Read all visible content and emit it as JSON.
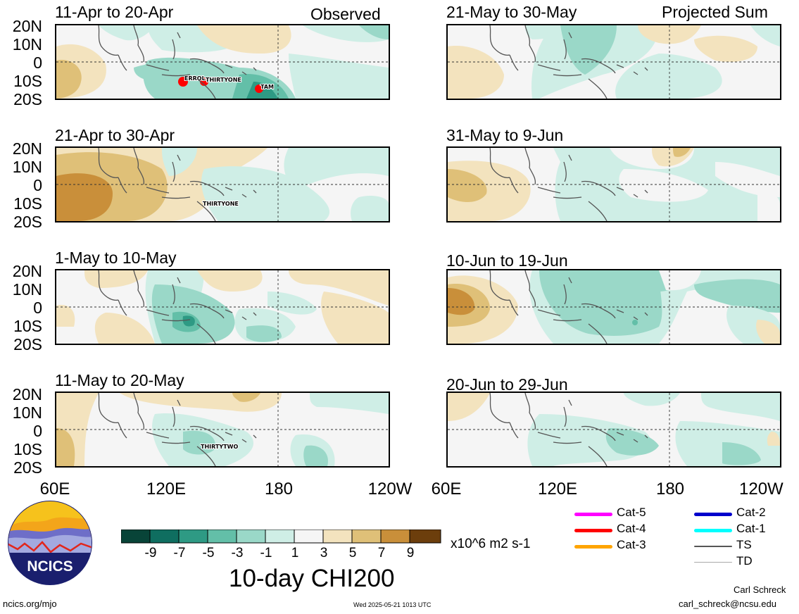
{
  "colors": {
    "ocean": "#f5f5f5",
    "land_line": "#555555",
    "g1": "#cfeee6",
    "g2": "#9ad8c8",
    "g3": "#63bfa8",
    "g4": "#2e9a84",
    "g5": "#0f6e60",
    "g6": "#084438",
    "b1": "#f3e3be",
    "b2": "#dfc078",
    "b3": "#c98f3a",
    "b4": "#a55f14",
    "b5": "#6c3e0c",
    "cat5": "#ff00ff",
    "cat4": "#ff0000",
    "cat3": "#ffa500",
    "cat2": "#0000cc",
    "cat1": "#00ffff",
    "ts": "#555555",
    "td": "#aaaaaa"
  },
  "headers": {
    "observed": "Observed",
    "projected": "Projected Sum"
  },
  "latitude_labels": [
    "20N",
    "10N",
    "0",
    "10S",
    "20S"
  ],
  "longitude_labels": [
    "60E",
    "120E",
    "180",
    "120W"
  ],
  "panels": [
    {
      "id": "p1",
      "title": "11-Apr to 20-Apr",
      "storms": [
        "ERROL",
        "THIRTYONE",
        "TAM"
      ]
    },
    {
      "id": "p2",
      "title": "21-Apr to 30-Apr",
      "storms": [
        "THIRTYONE"
      ]
    },
    {
      "id": "p3",
      "title": "1-May to 10-May",
      "storms": []
    },
    {
      "id": "p4",
      "title": "11-May to 20-May",
      "storms": [
        "THIRTYTWO"
      ]
    },
    {
      "id": "p5",
      "title": "21-May to 30-May",
      "storms": []
    },
    {
      "id": "p6",
      "title": "31-May to 9-Jun",
      "storms": []
    },
    {
      "id": "p7",
      "title": "10-Jun to 19-Jun",
      "storms": []
    },
    {
      "id": "p8",
      "title": "20-Jun to 29-Jun",
      "storms": []
    }
  ],
  "colorbar": {
    "labels": [
      "-9",
      "-7",
      "-5",
      "-3",
      "-1",
      "1",
      "3",
      "5",
      "7",
      "9"
    ],
    "units": "x10^6 m2 s-1",
    "title": "10-day CHI200"
  },
  "legend": [
    {
      "label": "Cat-5",
      "color_key": "cat5"
    },
    {
      "label": "Cat-4",
      "color_key": "cat4"
    },
    {
      "label": "Cat-3",
      "color_key": "cat3"
    },
    {
      "label": "Cat-2",
      "color_key": "cat2"
    },
    {
      "label": "Cat-1",
      "color_key": "cat1"
    },
    {
      "label": "TS",
      "color_key": "ts"
    },
    {
      "label": "TD",
      "color_key": "td"
    }
  ],
  "logo_text": "NCICS",
  "footer": {
    "url": "ncics.org/mjo",
    "timestamp": "Wed 2025-05-21 1013 UTC",
    "author": "Carl Schreck",
    "email": "carl_schreck@ncsu.edu"
  }
}
